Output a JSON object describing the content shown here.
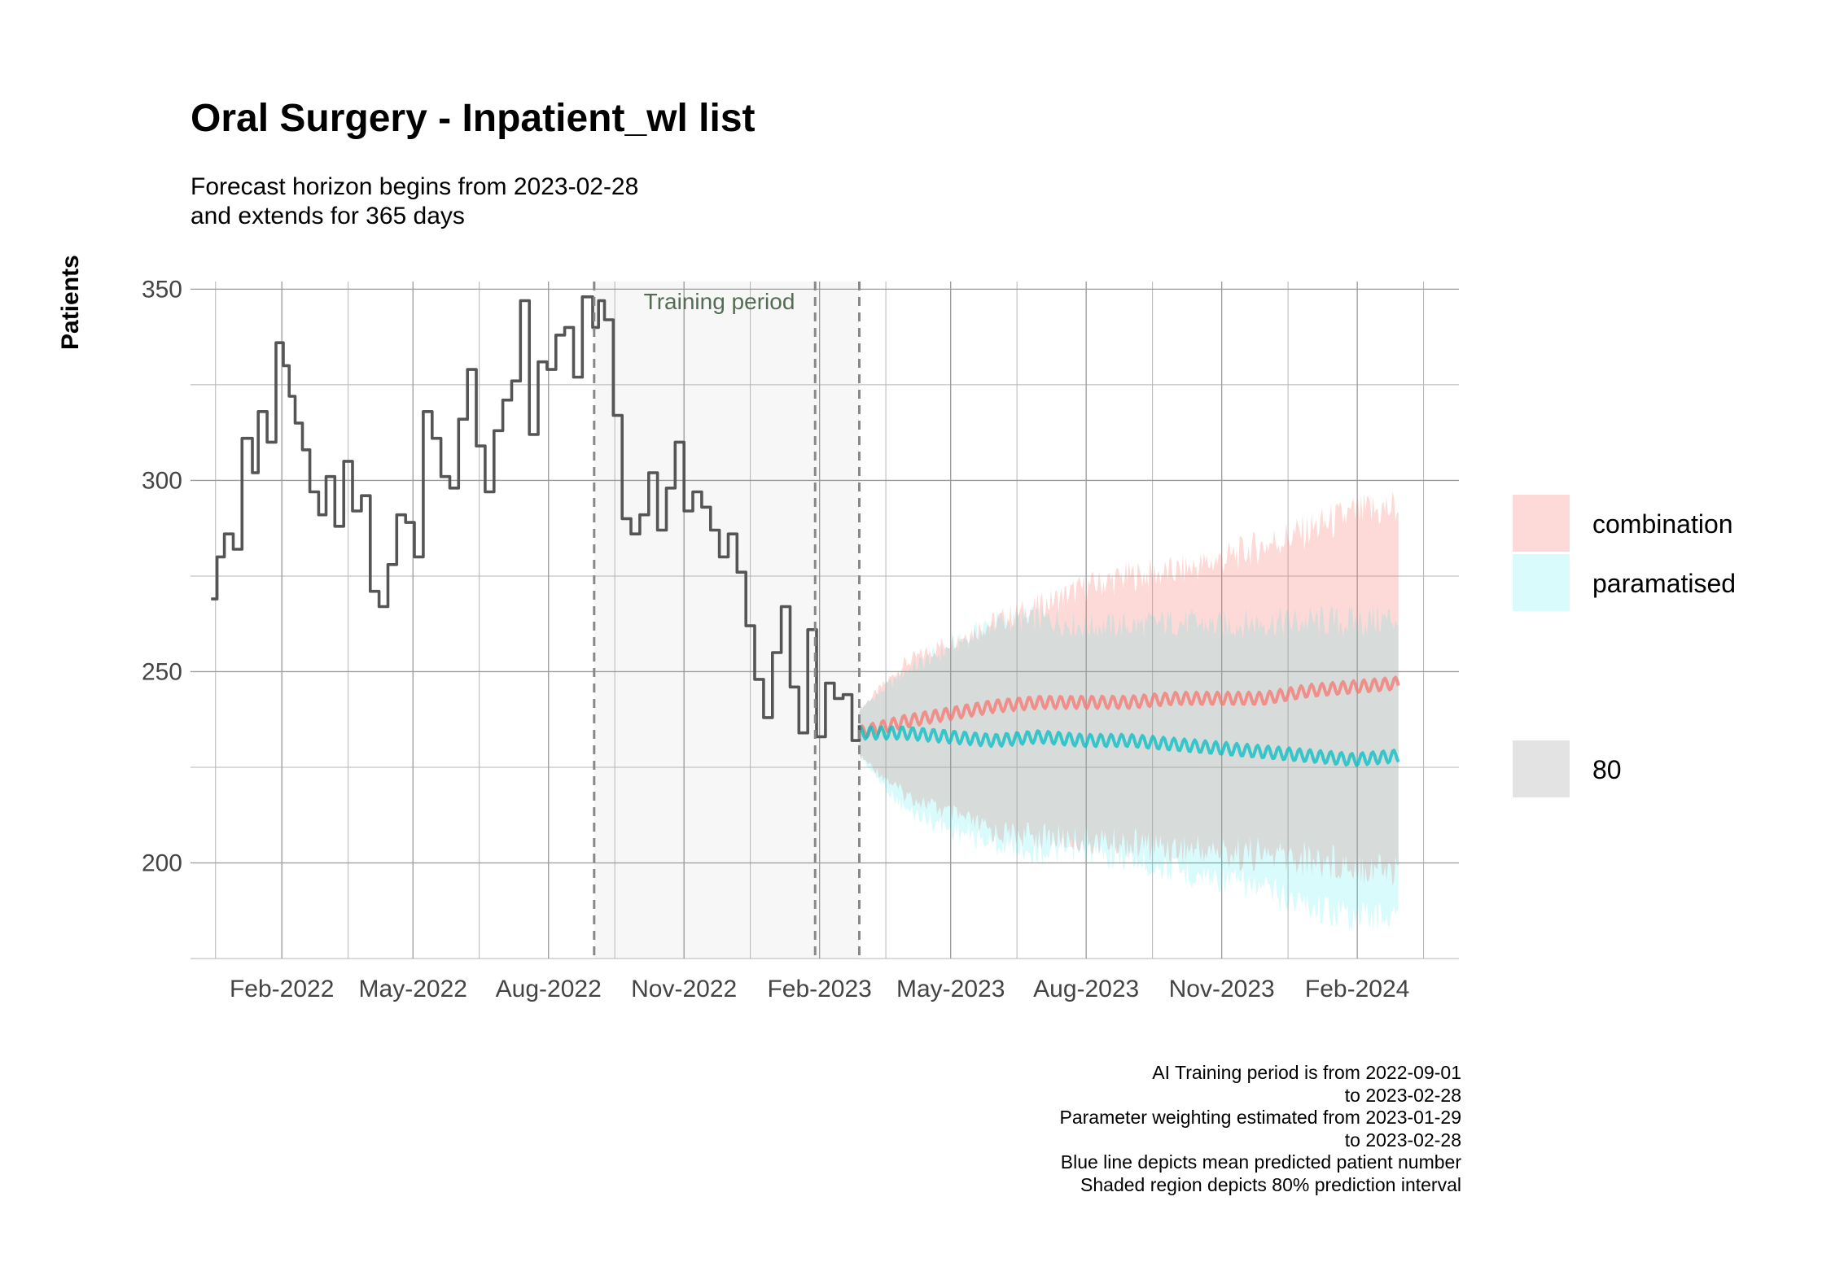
{
  "title": "Oral Surgery - Inpatient_wl list",
  "subtitle": [
    "Forecast horizon begins from 2023-02-28",
    "and extends for 365 days"
  ],
  "caption": [
    "AI Training period is from 2022-09-01",
    "to 2023-02-28",
    "Parameter weighting estimated from 2023-01-29",
    "to 2023-02-28",
    "Blue line depicts mean predicted patient number",
    "Shaded region depicts 80% prediction interval"
  ],
  "legend": {
    "series": [
      {
        "label": "combination",
        "color": "#f8766d"
      },
      {
        "label": "paramatised",
        "color": "#00bfc4"
      }
    ],
    "interval": {
      "label": "80",
      "color": "#e3e3e3"
    }
  },
  "chart_data": {
    "type": "line",
    "ylabel": "Patients",
    "xlabel": "",
    "ylim": [
      175,
      352
    ],
    "xlim": [
      "2021-12-01",
      "2024-04-10"
    ],
    "yticks": [
      200,
      250,
      300,
      350
    ],
    "xticks": [
      {
        "label": "Feb-2022",
        "date": "2022-02-01"
      },
      {
        "label": "May-2022",
        "date": "2022-05-01"
      },
      {
        "label": "Aug-2022",
        "date": "2022-08-01"
      },
      {
        "label": "Nov-2022",
        "date": "2022-11-01"
      },
      {
        "label": "Feb-2023",
        "date": "2023-02-01"
      },
      {
        "label": "May-2023",
        "date": "2023-05-01"
      },
      {
        "label": "Aug-2023",
        "date": "2023-08-01"
      },
      {
        "label": "Nov-2023",
        "date": "2023-11-01"
      },
      {
        "label": "Feb-2024",
        "date": "2024-02-01"
      }
    ],
    "grid": true,
    "legend_position": "right",
    "training_period": {
      "label": "Training period",
      "start": "2022-09-01",
      "end": "2023-02-28",
      "weighting_start": "2023-01-29"
    },
    "observed": {
      "color": "#555555",
      "x": [
        "2021-12-15",
        "2021-12-19",
        "2021-12-24",
        "2021-12-30",
        "2022-01-05",
        "2022-01-12",
        "2022-01-16",
        "2022-01-22",
        "2022-01-28",
        "2022-02-02",
        "2022-02-06",
        "2022-02-10",
        "2022-02-15",
        "2022-02-20",
        "2022-02-26",
        "2022-03-03",
        "2022-03-09",
        "2022-03-15",
        "2022-03-21",
        "2022-03-27",
        "2022-04-02",
        "2022-04-08",
        "2022-04-14",
        "2022-04-20",
        "2022-04-26",
        "2022-05-02",
        "2022-05-08",
        "2022-05-14",
        "2022-05-20",
        "2022-05-26",
        "2022-06-01",
        "2022-06-07",
        "2022-06-13",
        "2022-06-19",
        "2022-06-25",
        "2022-07-01",
        "2022-07-07",
        "2022-07-13",
        "2022-07-19",
        "2022-07-25",
        "2022-07-31",
        "2022-08-06",
        "2022-08-12",
        "2022-08-18",
        "2022-08-24",
        "2022-08-31",
        "2022-09-04",
        "2022-09-08",
        "2022-09-14",
        "2022-09-20",
        "2022-09-26",
        "2022-10-02",
        "2022-10-08",
        "2022-10-14",
        "2022-10-20",
        "2022-10-26",
        "2022-11-01",
        "2022-11-07",
        "2022-11-13",
        "2022-11-19",
        "2022-11-25",
        "2022-12-01",
        "2022-12-07",
        "2022-12-13",
        "2022-12-19",
        "2022-12-25",
        "2022-12-31",
        "2023-01-06",
        "2023-01-12",
        "2023-01-18",
        "2023-01-24",
        "2023-01-30",
        "2023-02-05",
        "2023-02-11",
        "2023-02-17",
        "2023-02-23",
        "2023-02-28"
      ],
      "values": [
        269,
        280,
        286,
        282,
        311,
        302,
        318,
        310,
        336,
        330,
        322,
        315,
        308,
        297,
        291,
        301,
        288,
        305,
        292,
        296,
        271,
        267,
        278,
        291,
        289,
        280,
        318,
        311,
        301,
        298,
        316,
        329,
        309,
        297,
        313,
        321,
        326,
        347,
        312,
        331,
        329,
        338,
        340,
        327,
        348,
        340,
        347,
        342,
        317,
        290,
        286,
        291,
        302,
        287,
        298,
        310,
        292,
        297,
        293,
        287,
        280,
        286,
        276,
        262,
        248,
        238,
        255,
        267,
        246,
        234,
        261,
        233,
        247,
        243,
        244,
        232,
        236
      ]
    },
    "forecast": {
      "x": [
        "2023-02-28",
        "2023-03-31",
        "2023-04-30",
        "2023-05-31",
        "2023-06-30",
        "2023-07-31",
        "2023-08-31",
        "2023-09-30",
        "2023-10-31",
        "2023-11-30",
        "2023-12-31",
        "2024-01-31",
        "2024-02-29"
      ],
      "series": [
        {
          "name": "combination",
          "color": "#f8766d",
          "mean": [
            234,
            237,
            239,
            241,
            242,
            242,
            242,
            243,
            243,
            243,
            245,
            246,
            247
          ],
          "lower": [
            228,
            218,
            213,
            208,
            207,
            206,
            205,
            204,
            203,
            202,
            201,
            200,
            198
          ],
          "upper": [
            240,
            252,
            258,
            263,
            267,
            272,
            275,
            276,
            279,
            283,
            287,
            291,
            293
          ]
        },
        {
          "name": "paramatised",
          "color": "#00bfc4",
          "mean": [
            234,
            234,
            233,
            232,
            233,
            232,
            232,
            231,
            230,
            229,
            228,
            227,
            228
          ],
          "lower": [
            228,
            214,
            209,
            205,
            203,
            203,
            201,
            198,
            196,
            193,
            189,
            186,
            186
          ],
          "upper": [
            240,
            250,
            256,
            263,
            264,
            262,
            262,
            263,
            262,
            263,
            263,
            263,
            264
          ]
        }
      ]
    }
  }
}
